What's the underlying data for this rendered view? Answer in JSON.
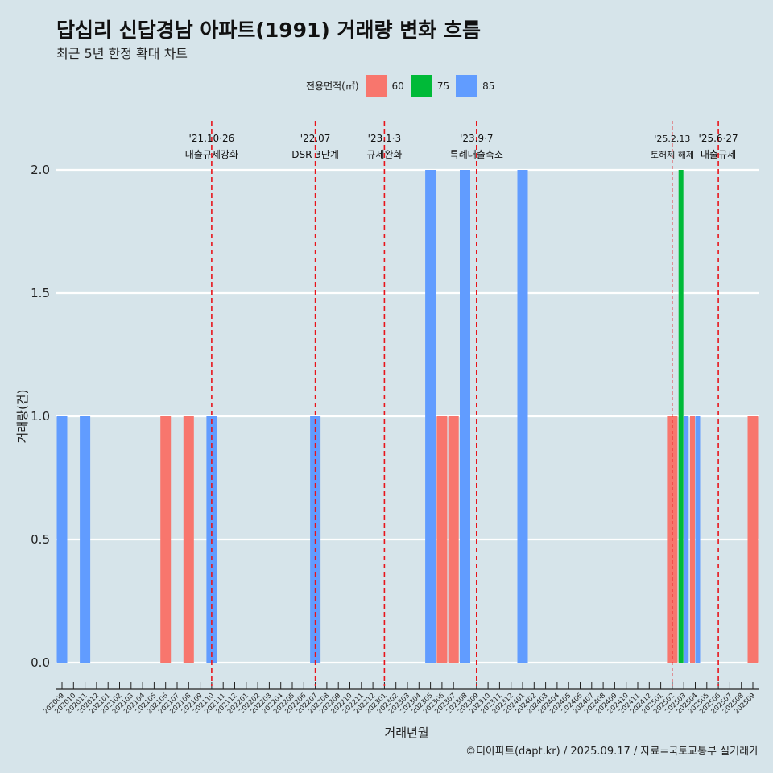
{
  "title": "답십리 신답경남 아파트(1991) 거래량 변화 흐름",
  "subtitle": "최근 5년 한정 확대 차트",
  "caption": "©디아파트(dapt.kr) / 2025.09.17 / 자료=국토교통부 실거래가",
  "chart_data": {
    "type": "bar",
    "title": "답십리 신답경남 아파트(1991) 거래량 변화 흐름",
    "xlabel": "거래년월",
    "ylabel": "거래량(건)",
    "ylim": [
      0,
      2
    ],
    "yticks": [
      "0.0",
      "0.5",
      "1.0",
      "1.5",
      "2.0"
    ],
    "ytick_values": [
      0,
      0.5,
      1,
      1.5,
      2
    ],
    "legend": {
      "title": "전용면적(㎡)",
      "placement": "top",
      "entries": [
        {
          "name": "60",
          "color": "#f8766d"
        },
        {
          "name": "75",
          "color": "#00ba38"
        },
        {
          "name": "85",
          "color": "#619cff"
        }
      ]
    },
    "categories": [
      "202009",
      "202010",
      "202011",
      "202012",
      "202101",
      "202102",
      "202103",
      "202104",
      "202105",
      "202106",
      "202107",
      "202108",
      "202109",
      "202110",
      "202111",
      "202112",
      "202201",
      "202202",
      "202203",
      "202204",
      "202205",
      "202206",
      "202207",
      "202208",
      "202209",
      "202210",
      "202211",
      "202212",
      "202301",
      "202302",
      "202303",
      "202304",
      "202305",
      "202306",
      "202307",
      "202308",
      "202309",
      "202310",
      "202311",
      "202312",
      "202401",
      "202402",
      "202403",
      "202404",
      "202405",
      "202406",
      "202407",
      "202408",
      "202409",
      "202410",
      "202411",
      "202412",
      "202501",
      "202502",
      "202503",
      "202504",
      "202505",
      "202506",
      "202507",
      "202508",
      "202509"
    ],
    "bars": [
      {
        "month": "202009",
        "area": "85",
        "value": 1
      },
      {
        "month": "202011",
        "area": "85",
        "value": 1
      },
      {
        "month": "202106",
        "area": "60",
        "value": 1
      },
      {
        "month": "202108",
        "area": "60",
        "value": 1
      },
      {
        "month": "202110",
        "area": "85",
        "value": 1
      },
      {
        "month": "202207",
        "area": "85",
        "value": 1
      },
      {
        "month": "202305",
        "area": "85",
        "value": 2
      },
      {
        "month": "202306",
        "area": "60",
        "value": 1
      },
      {
        "month": "202307",
        "area": "60",
        "value": 1
      },
      {
        "month": "202308",
        "area": "85",
        "value": 2
      },
      {
        "month": "202401",
        "area": "85",
        "value": 2
      },
      {
        "month": "202502",
        "area": "60",
        "value": 1
      },
      {
        "month": "202503",
        "area": "75",
        "value": 2
      },
      {
        "month": "202503",
        "area": "85",
        "value": 1
      },
      {
        "month": "202504",
        "area": "60",
        "value": 1
      },
      {
        "month": "202504",
        "area": "85",
        "value": 1
      },
      {
        "month": "202509",
        "area": "60",
        "value": 1
      }
    ],
    "annotations": [
      {
        "month": "202110",
        "date": "'21.10·26",
        "label": "대출규제강화",
        "style": "bold"
      },
      {
        "month": "202207",
        "date": "'22.07",
        "label": "DSR 3단계",
        "style": "bold"
      },
      {
        "month": "202301",
        "date": "'23.1·3",
        "label": "규제완화",
        "style": "bold"
      },
      {
        "month": "202309",
        "date": "'23.9·7",
        "label": "특례대출축소",
        "style": "bold"
      },
      {
        "month": "202502",
        "date": "'25.2.13",
        "label": "토허제 해제",
        "style": "thin"
      },
      {
        "month": "202506",
        "date": "'25.6·27",
        "label": "대출규제",
        "style": "bold"
      }
    ]
  }
}
